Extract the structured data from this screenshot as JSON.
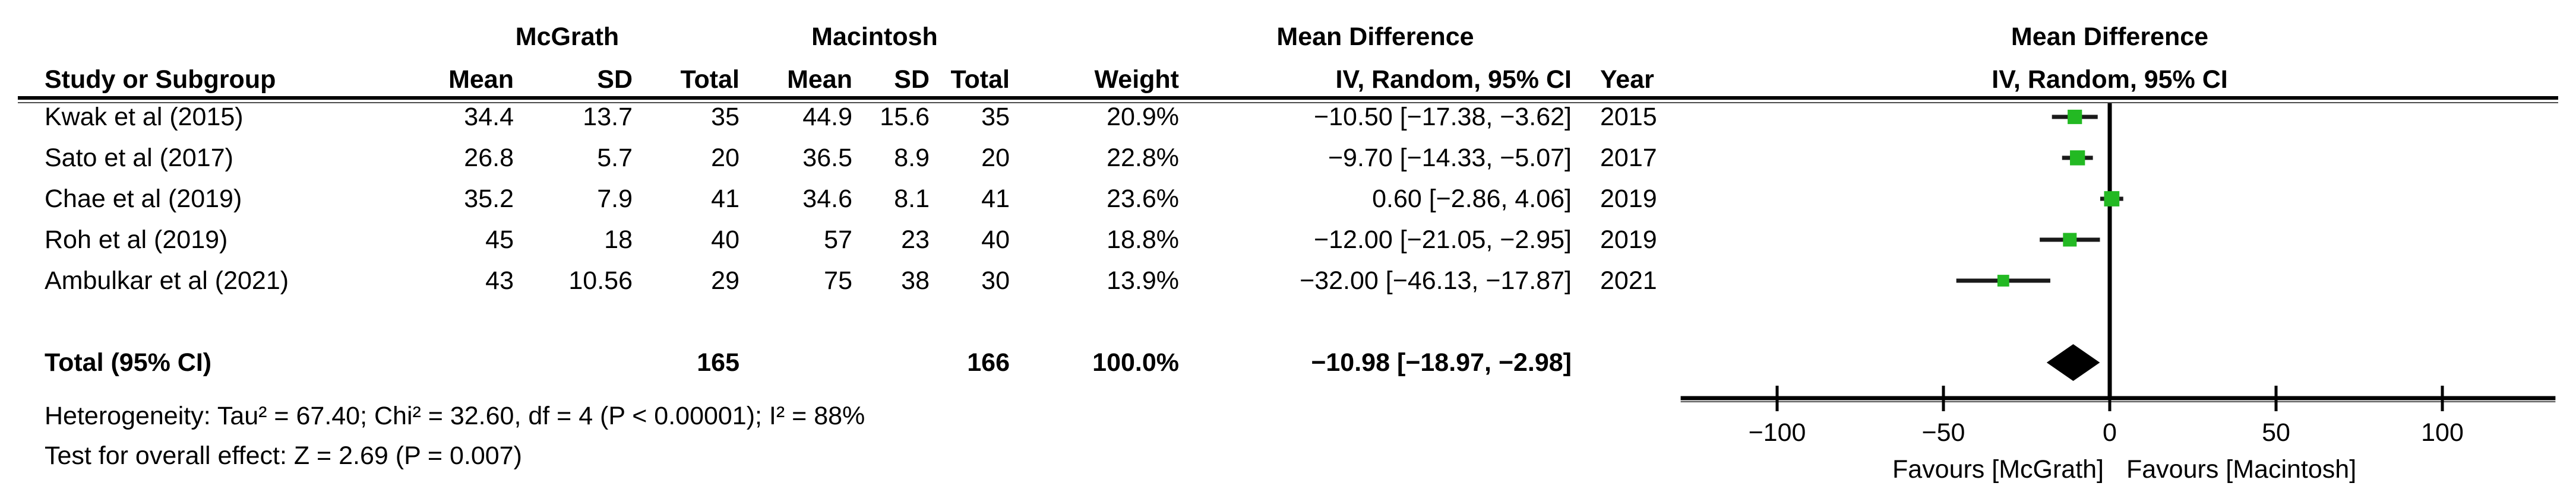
{
  "table": {
    "group_headers": {
      "experimental": "McGrath",
      "control": "Macintosh",
      "effect": "Mean Difference"
    },
    "columns": {
      "study": "Study or Subgroup",
      "mean1": "Mean",
      "sd1": "SD",
      "total1": "Total",
      "mean2": "Mean",
      "sd2": "SD",
      "total2": "Total",
      "weight": "Weight",
      "ci": "IV, Random, 95% CI",
      "year": "Year"
    },
    "rows": [
      {
        "study": "Kwak et al (2015)",
        "mean1": "34.4",
        "sd1": "13.7",
        "total1": "35",
        "mean2": "44.9",
        "sd2": "15.6",
        "total2": "35",
        "weight": "20.9%",
        "ci": "−10.50 [−17.38, −3.62]",
        "year": "2015"
      },
      {
        "study": "Sato et al (2017)",
        "mean1": "26.8",
        "sd1": "5.7",
        "total1": "20",
        "mean2": "36.5",
        "sd2": "8.9",
        "total2": "20",
        "weight": "22.8%",
        "ci": "−9.70 [−14.33, −5.07]",
        "year": "2017"
      },
      {
        "study": "Chae et al (2019)",
        "mean1": "35.2",
        "sd1": "7.9",
        "total1": "41",
        "mean2": "34.6",
        "sd2": "8.1",
        "total2": "41",
        "weight": "23.6%",
        "ci": "0.60 [−2.86, 4.06]",
        "year": "2019"
      },
      {
        "study": "Roh et al (2019)",
        "mean1": "45",
        "sd1": "18",
        "total1": "40",
        "mean2": "57",
        "sd2": "23",
        "total2": "40",
        "weight": "18.8%",
        "ci": "−12.00 [−21.05, −2.95]",
        "year": "2019"
      },
      {
        "study": "Ambulkar et al (2021)",
        "mean1": "43",
        "sd1": "10.56",
        "total1": "29",
        "mean2": "75",
        "sd2": "38",
        "total2": "30",
        "weight": "13.9%",
        "ci": "−32.00 [−46.13, −17.87]",
        "year": "2021"
      }
    ],
    "total_row": {
      "label": "Total (95% CI)",
      "total1": "165",
      "total2": "166",
      "weight": "100.0%",
      "ci": "−10.98 [−18.97, −2.98]"
    },
    "heterogeneity": "Heterogeneity: Tau² = 67.40; Chi² = 32.60, df = 4 (P < 0.00001); I² = 88%",
    "overall_effect": "Test for overall effect: Z = 2.69 (P = 0.007)"
  },
  "plot": {
    "header_line1": "Mean Difference",
    "header_line2": "IV, Random, 95% CI",
    "favours_left": "Favours [McGrath]",
    "favours_right": "Favours [Macintosh]"
  },
  "chart_data": {
    "type": "forest",
    "title": "Mean Difference",
    "subtitle": "IV, Random, 95% CI",
    "x_axis": {
      "ticks": [
        -100,
        -50,
        0,
        50,
        100
      ],
      "tick_labels": [
        "−100",
        "−50",
        "0",
        "50",
        "100"
      ],
      "xlim": [
        -129,
        134
      ]
    },
    "favours_left": "Favours [McGrath]",
    "favours_right": "Favours [Macintosh]",
    "marker_color": "#23b923",
    "diamond_color": "#000000",
    "studies": [
      {
        "name": "Kwak et al (2015)",
        "md": -10.5,
        "ci_low": -17.38,
        "ci_high": -3.62,
        "weight_pct": 20.9,
        "year": 2015
      },
      {
        "name": "Sato et al (2017)",
        "md": -9.7,
        "ci_low": -14.33,
        "ci_high": -5.07,
        "weight_pct": 22.8,
        "year": 2017
      },
      {
        "name": "Chae et al (2019)",
        "md": 0.6,
        "ci_low": -2.86,
        "ci_high": 4.06,
        "weight_pct": 23.6,
        "year": 2019
      },
      {
        "name": "Roh et al (2019)",
        "md": -12.0,
        "ci_low": -21.05,
        "ci_high": -2.95,
        "weight_pct": 18.8,
        "year": 2019
      },
      {
        "name": "Ambulkar et al (2021)",
        "md": -32.0,
        "ci_low": -46.13,
        "ci_high": -17.87,
        "weight_pct": 13.9,
        "year": 2021
      }
    ],
    "total": {
      "label": "Total (95% CI)",
      "md": -10.98,
      "ci_low": -18.97,
      "ci_high": -2.98,
      "weight_pct": 100.0,
      "n_experimental": 165,
      "n_control": 166
    },
    "heterogeneity": {
      "tau2": 67.4,
      "chi2": 32.6,
      "df": 4,
      "p": "< 0.00001",
      "i2_pct": 88
    },
    "overall_effect": {
      "z": 2.69,
      "p": "= 0.007"
    }
  }
}
